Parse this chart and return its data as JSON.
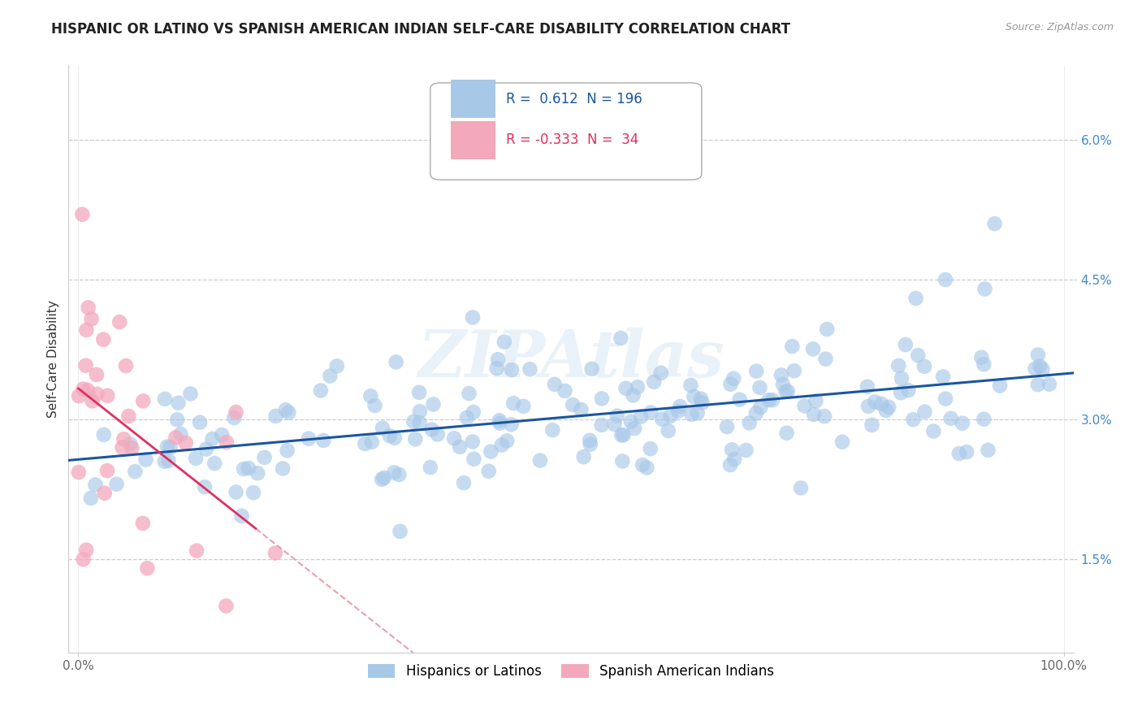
{
  "title": "HISPANIC OR LATINO VS SPANISH AMERICAN INDIAN SELF-CARE DISABILITY CORRELATION CHART",
  "source": "Source: ZipAtlas.com",
  "ylabel": "Self-Care Disability",
  "r_blue": 0.612,
  "n_blue": 196,
  "r_pink": -0.333,
  "n_pink": 34,
  "xlim": [
    -1,
    101
  ],
  "ylim": [
    0.5,
    6.8
  ],
  "ytick_positions": [
    1.5,
    3.0,
    4.5,
    6.0
  ],
  "ytick_labels": [
    "1.5%",
    "3.0%",
    "4.5%",
    "6.0%"
  ],
  "blue_color": "#a8c8e8",
  "pink_color": "#f4a8bc",
  "blue_line_color": "#1a56a0",
  "pink_line_color": "#e03060",
  "pink_dash_color": "#e8a0b0",
  "watermark": "ZIPAtlas",
  "legend_label_blue": "Hispanics or Latinos",
  "legend_label_pink": "Spanish American Indians",
  "background_color": "#ffffff",
  "grid_color": "#cccccc",
  "title_color": "#222222",
  "title_fontsize": 12,
  "axis_label_fontsize": 11,
  "tick_color_x": "#666666",
  "tick_color_y": "#4488cc",
  "tick_fontsize": 11,
  "legend_fontsize": 12,
  "legend_text_color": "#1a56a0",
  "legend_text_color2": "#e03060"
}
